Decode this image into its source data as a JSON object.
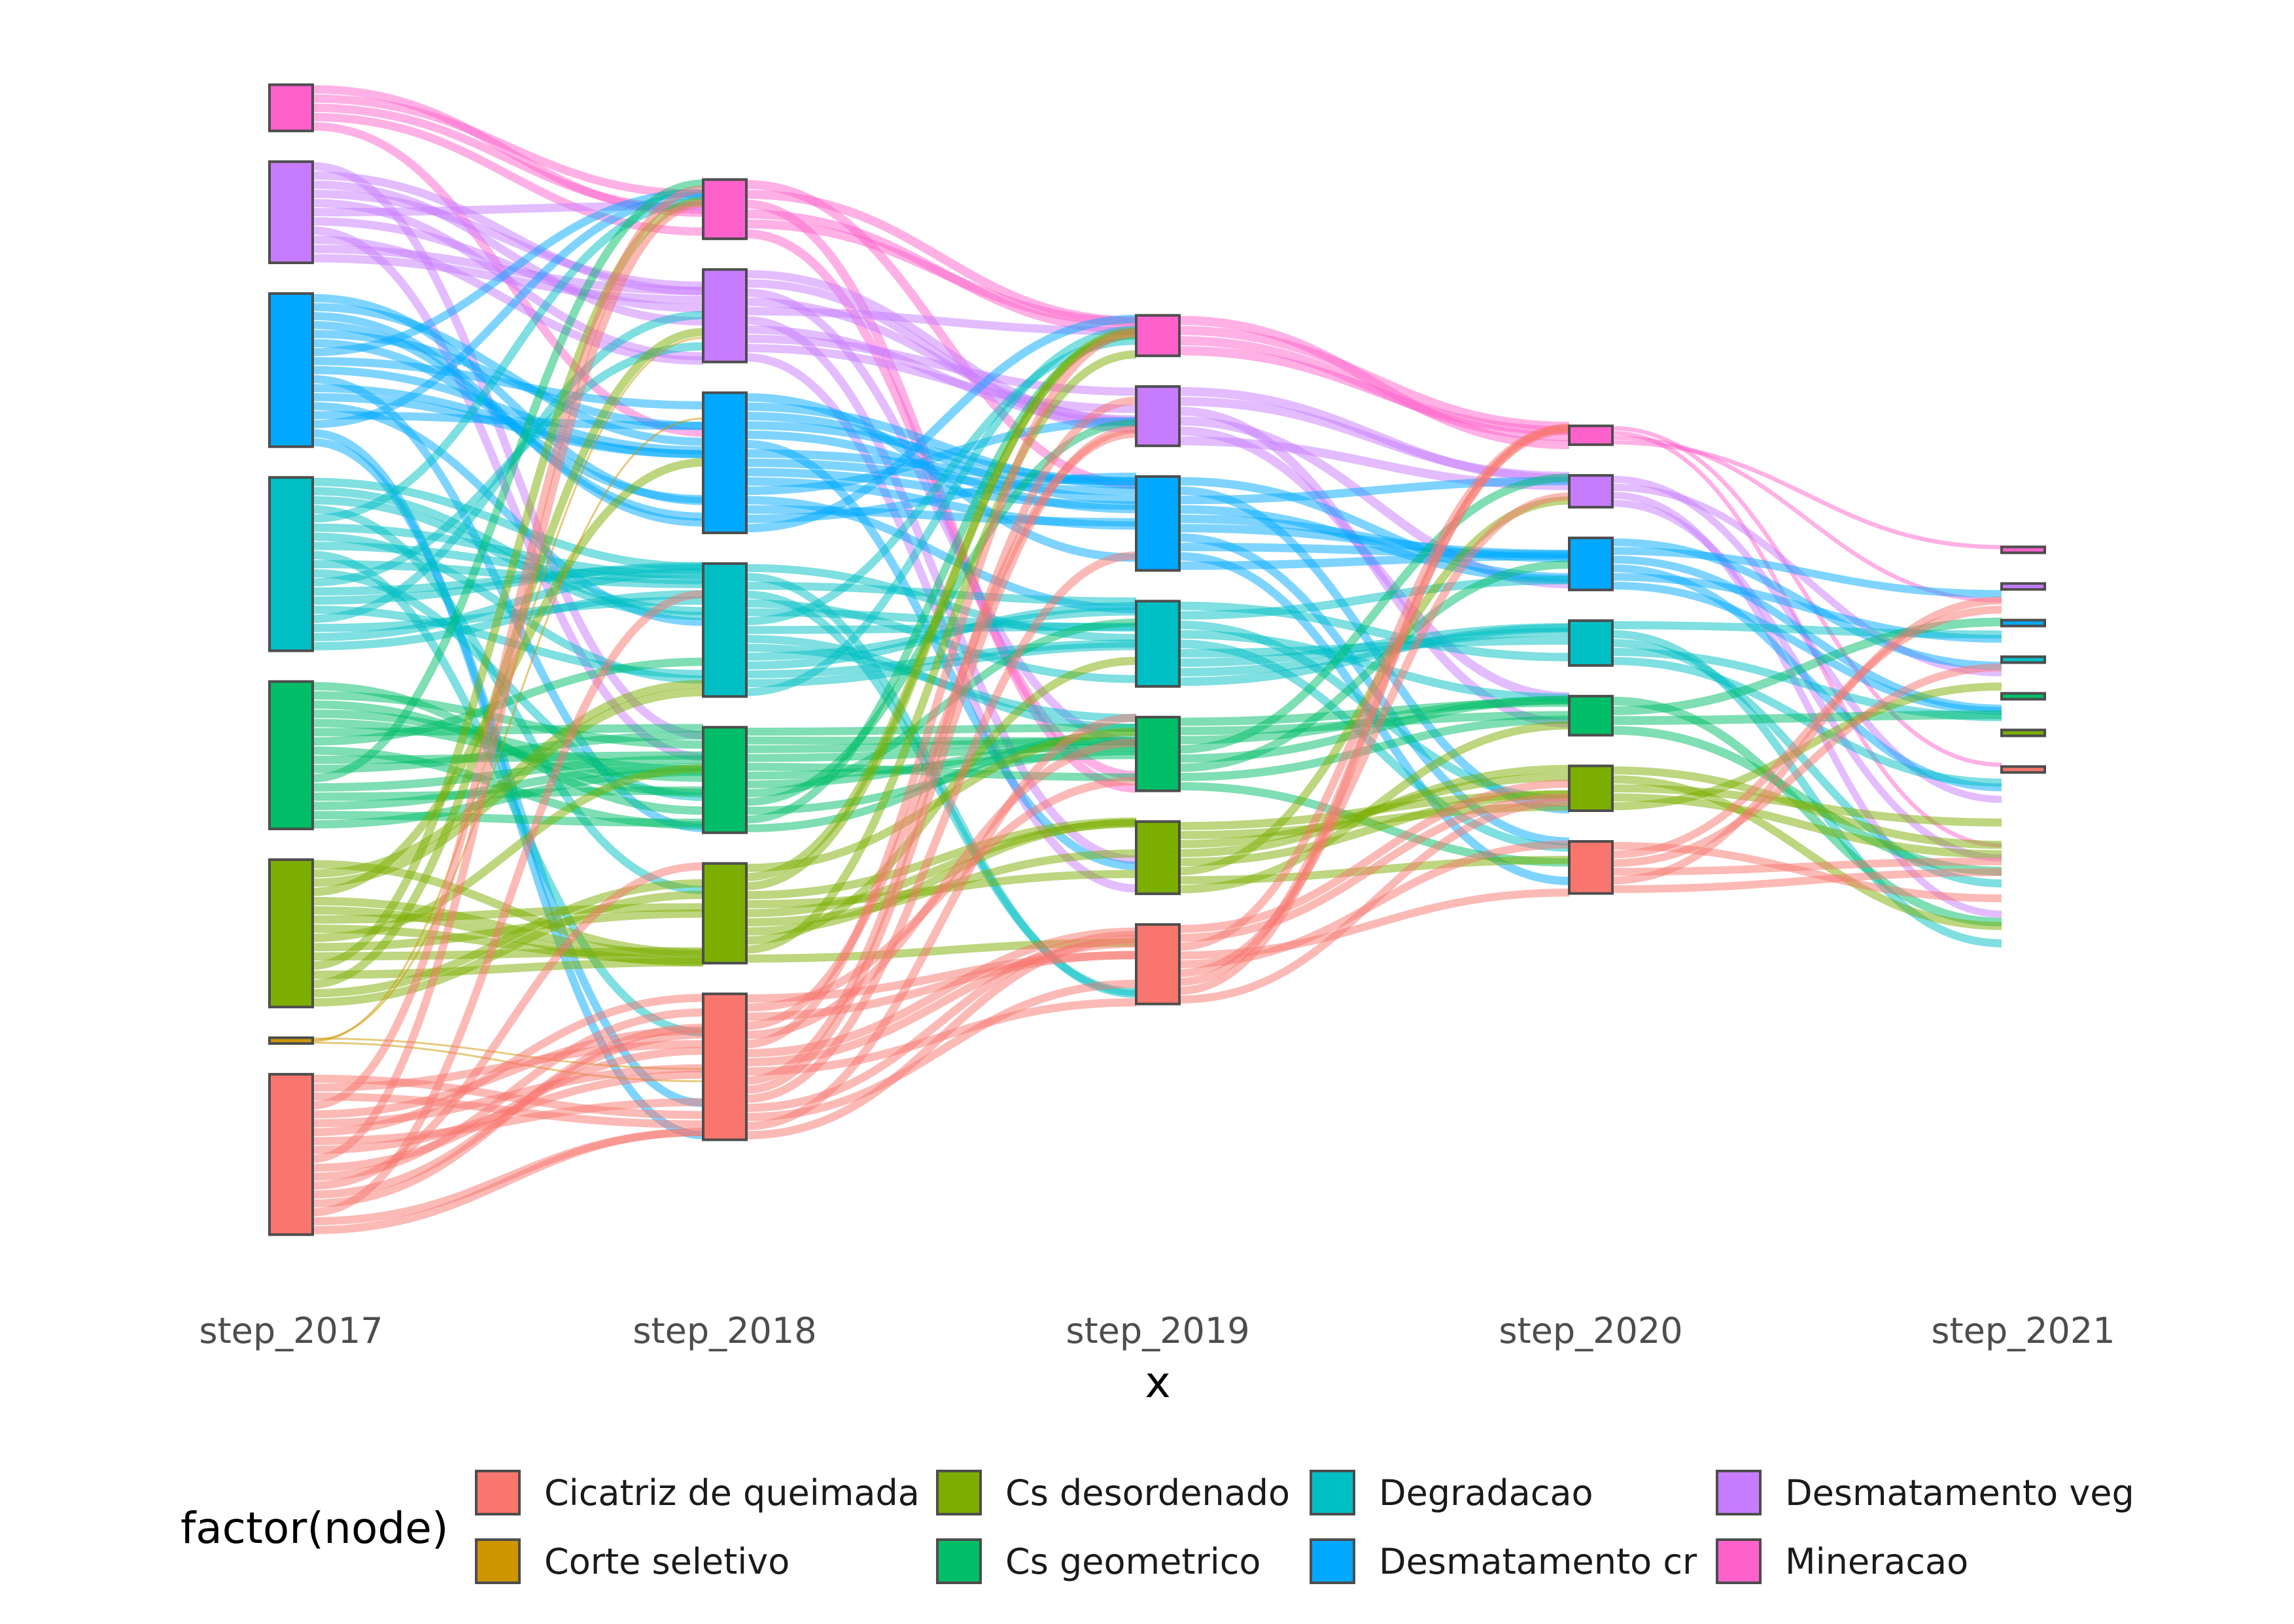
{
  "chart_data": {
    "type": "sankey",
    "x": [
      "step_2017",
      "step_2018",
      "step_2019",
      "step_2020",
      "step_2021"
    ],
    "xlabel": "x",
    "ylabel": "",
    "legend": {
      "title": "factor(node)",
      "position": "bottom",
      "entries": [
        {
          "name": "Cicatriz de queimada",
          "color": "#F8766D"
        },
        {
          "name": "Corte seletivo",
          "color": "#CD9600"
        },
        {
          "name": "Cs desordenado",
          "color": "#7CAE00"
        },
        {
          "name": "Cs geometrico",
          "color": "#00BE67"
        },
        {
          "name": "Degradacao",
          "color": "#00BFC4"
        },
        {
          "name": "Desmatamento cr",
          "color": "#00A9FF"
        },
        {
          "name": "Desmatamento veg",
          "color": "#C77CFF"
        },
        {
          "name": "Mineracao",
          "color": "#FF61CC"
        }
      ]
    },
    "node_order": [
      "Mineracao",
      "Desmatamento veg",
      "Desmatamento cr",
      "Degradacao",
      "Cs geometrico",
      "Cs desordenado",
      "Corte seletivo",
      "Cicatriz de queimada"
    ],
    "node_counts": {
      "step_2017": {
        "Mineracao": 32,
        "Desmatamento veg": 70,
        "Desmatamento cr": 106,
        "Degradacao": 120,
        "Cs geometrico": 102,
        "Cs desordenado": 102,
        "Corte seletivo": 4,
        "Cicatriz de queimada": 111
      },
      "step_2018": {
        "Mineracao": 41,
        "Desmatamento veg": 64,
        "Desmatamento cr": 97,
        "Degradacao": 92,
        "Cs geometrico": 73,
        "Cs desordenado": 69,
        "Corte seletivo": 0,
        "Cicatriz de queimada": 101
      },
      "step_2019": {
        "Mineracao": 28,
        "Desmatamento veg": 41,
        "Desmatamento cr": 65,
        "Degradacao": 59,
        "Cs geometrico": 51,
        "Cs desordenado": 50,
        "Corte seletivo": 0,
        "Cicatriz de queimada": 55
      },
      "step_2020": {
        "Mineracao": 13,
        "Desmatamento veg": 22,
        "Desmatamento cr": 36,
        "Degradacao": 31,
        "Cs geometrico": 27,
        "Cs desordenado": 31,
        "Corte seletivo": 0,
        "Cicatriz de queimada": 36
      },
      "step_2021": {
        "Mineracao": 3,
        "Desmatamento veg": 3,
        "Desmatamento cr": 3,
        "Degradacao": 3,
        "Cs geometrico": 3,
        "Cs desordenado": 3,
        "Corte seletivo": 0,
        "Cicatriz de queimada": 3
      }
    },
    "grid": false
  }
}
